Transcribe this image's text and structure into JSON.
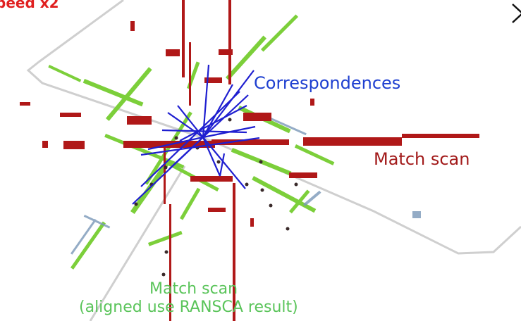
{
  "labels": {
    "speed": "peed x2",
    "correspondences": "Correspondences",
    "match_scan_red": "Match scan",
    "match_scan_green": "Match scan",
    "aligned_note": "(aligned use RANSCA result)"
  },
  "colors": {
    "match_scan_red": "#b01818",
    "match_scan_green": "#7ccf3a",
    "correspondence_lines": "#1f1fd0",
    "road_outline": "#cfcfcf",
    "speed_text": "#e02020"
  },
  "icons": {
    "corner": "chevron-right-icon"
  }
}
